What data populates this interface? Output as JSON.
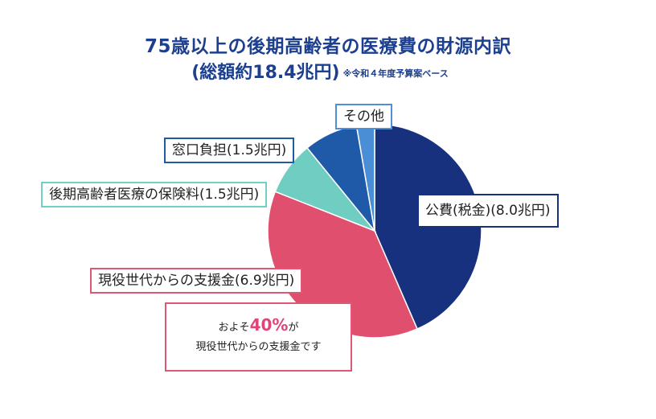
{
  "chart_data": {
    "type": "pie",
    "title": "75歳以上の後期高齢者の医療費の財源内訳",
    "subtitle": "(総額約18.4兆円)",
    "note": "※令和４年度予算案ベース",
    "slices": [
      {
        "name": "公費(税金)",
        "value": 8.0,
        "label": "公費(税金)(8.0兆円)",
        "color": "#17317f"
      },
      {
        "name": "現役世代からの支援金",
        "value": 6.9,
        "label": "現役世代からの支援金(6.9兆円)",
        "color": "#e04f6e"
      },
      {
        "name": "後期高齢者医療の保険料",
        "value": 1.5,
        "label": "後期高齢者医療の保険料(1.5兆円)",
        "color": "#6fcdc1"
      },
      {
        "name": "窓口負担",
        "value": 1.5,
        "label": "窓口負担(1.5兆円)",
        "color": "#1f5aa8"
      },
      {
        "name": "その他",
        "value": 0.5,
        "label": "その他",
        "color": "#4a8fd6"
      }
    ]
  },
  "callout": {
    "prefix": "およそ",
    "highlight": "40%",
    "suffix": "が",
    "line2": "現役世代からの支援金です"
  }
}
